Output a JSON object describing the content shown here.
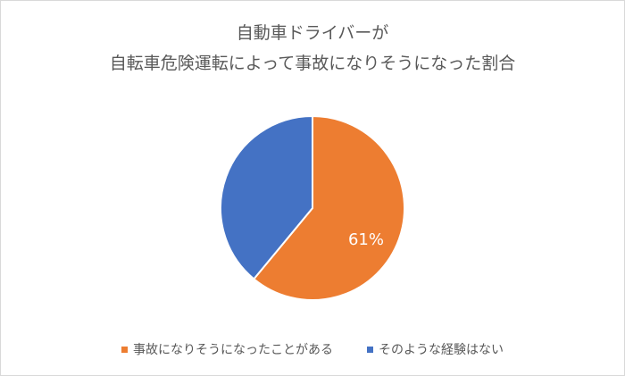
{
  "chart_data": {
    "type": "pie",
    "title": "自動車ドライバーが\n自転車危険運転によって事故になりそうになった割合",
    "title_lines": [
      "自動車ドライバーが",
      "自転車危険運転によって事故になりそうになった割合"
    ],
    "categories": [
      "事故になりそうになったことがある",
      "そのような経験はない"
    ],
    "values": [
      61,
      39
    ],
    "unit": "%",
    "colors": [
      "#ED7D31",
      "#4472C4"
    ],
    "data_labels": [
      {
        "category": "事故になりそうになったことがある",
        "text": "61%"
      }
    ],
    "legend_position": "bottom",
    "start_angle_deg": 0,
    "direction": "clockwise"
  },
  "legend": {
    "items": [
      {
        "label": "事故になりそうになったことがある",
        "color": "#ED7D31"
      },
      {
        "label": "そのような経験はない",
        "color": "#4472C4"
      }
    ]
  }
}
